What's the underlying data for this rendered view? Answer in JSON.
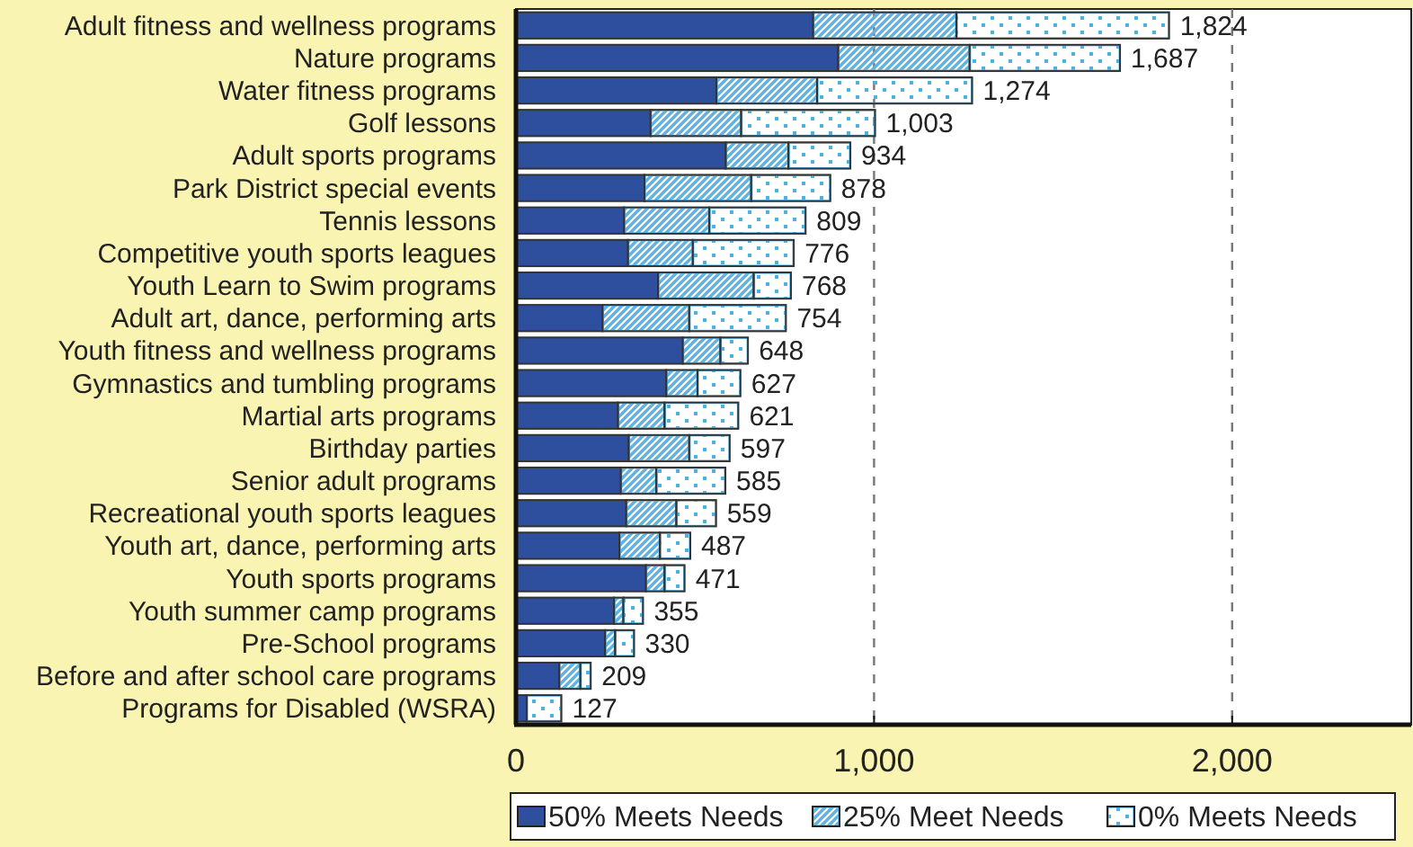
{
  "chart_data": {
    "type": "bar",
    "orientation": "horizontal",
    "stacked": true,
    "categories": [
      "Adult fitness and wellness programs",
      "Nature programs",
      "Water fitness programs",
      "Golf lessons",
      "Adult sports programs",
      "Park District special events",
      "Tennis lessons",
      "Competitive youth sports leagues",
      "Youth Learn to Swim programs",
      "Adult art, dance, performing arts",
      "Youth fitness and wellness programs",
      "Gymnastics and tumbling programs",
      "Martial arts programs",
      "Birthday parties",
      "Senior adult programs",
      "Recreational youth sports leagues",
      "Youth art, dance, performing arts",
      "Youth sports programs",
      "Youth summer camp programs",
      "Pre-School programs",
      "Before and after school care programs",
      "Programs for Disabled (WSRA)"
    ],
    "series": [
      {
        "name": "50% Meets Needs",
        "color": "#2e4f9e",
        "values": [
          830,
          900,
          560,
          376,
          586,
          359,
          302,
          313,
          397,
          242,
          466,
          420,
          285,
          315,
          293,
          308,
          289,
          363,
          274,
          249,
          121,
          30
        ]
      },
      {
        "name": "25% Meet Needs",
        "color": "#5ab4e5",
        "values": [
          400,
          367,
          281,
          253,
          175,
          298,
          238,
          181,
          267,
          242,
          105,
          87,
          130,
          169,
          99,
          140,
          113,
          52,
          26,
          28,
          59,
          0
        ]
      },
      {
        "name": "0% Meets Needs",
        "color": "#4ab2e6",
        "values": [
          594,
          420,
          433,
          374,
          173,
          221,
          269,
          282,
          104,
          270,
          77,
          120,
          206,
          113,
          193,
          111,
          85,
          56,
          55,
          53,
          29,
          97
        ]
      }
    ],
    "totals": [
      "1,824",
      "1,687",
      "1,274",
      "1,003",
      "934",
      "878",
      "809",
      "776",
      "768",
      "754",
      "648",
      "627",
      "621",
      "597",
      "585",
      "559",
      "487",
      "471",
      "355",
      "330",
      "209",
      "127"
    ],
    "xlim": [
      0,
      2500
    ],
    "xticks": [
      0,
      {
        "value": 1000,
        "label": "1,000"
      },
      {
        "value": 2000,
        "label": "2,000"
      }
    ],
    "grid": "x",
    "legend": "bottom"
  }
}
